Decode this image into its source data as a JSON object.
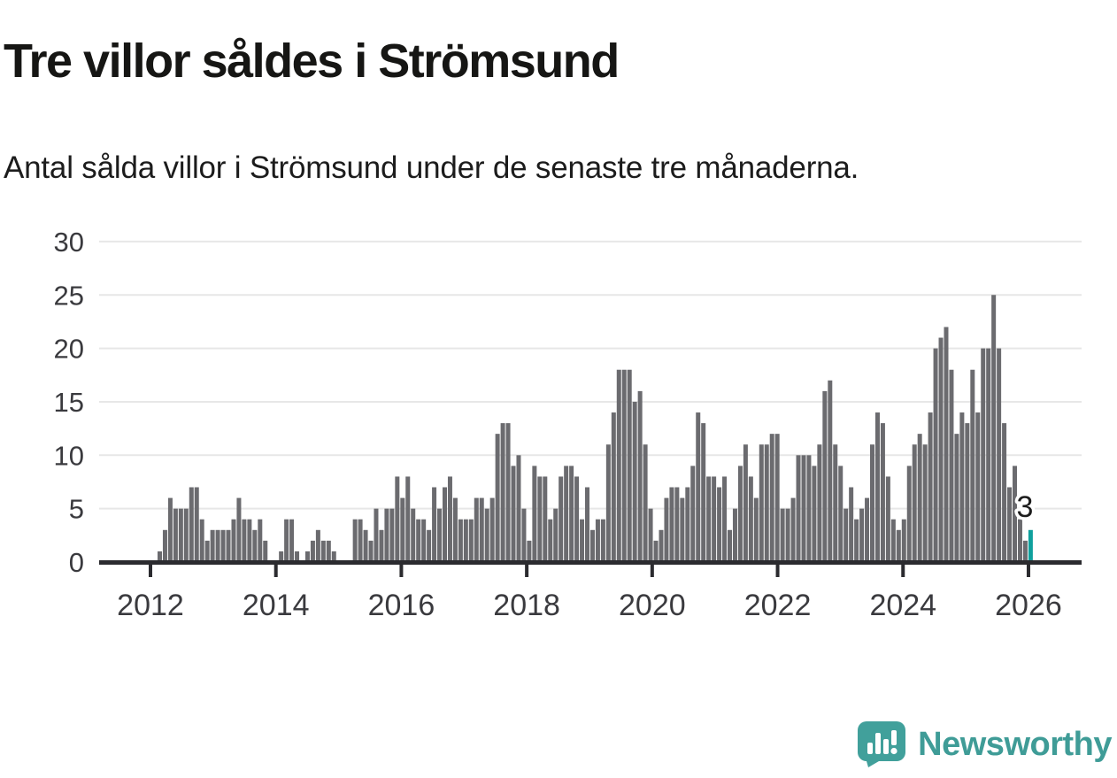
{
  "header": {
    "title": "Tre villor såldes i Strömsund",
    "subtitle": "Antal sålda villor i Strömsund under de senaste tre månaderna."
  },
  "chart_data": {
    "type": "bar",
    "title": "Tre villor såldes i Strömsund",
    "subtitle": "Antal sålda villor i Strömsund under de senaste tre månaderna.",
    "frequency": "monthly",
    "x_start_month": "2012-03",
    "x_end_month": "2025-12",
    "x_tick_labels": [
      "2012",
      "2014",
      "2016",
      "2018",
      "2020",
      "2022",
      "2024",
      "2026"
    ],
    "y_ticks": [
      0,
      5,
      10,
      15,
      20,
      25,
      30
    ],
    "ylim": [
      0,
      30
    ],
    "grid": "horizontal-lines",
    "legend": "none",
    "values": [
      1,
      3,
      6,
      5,
      5,
      5,
      7,
      7,
      4,
      2,
      3,
      3,
      3,
      3,
      4,
      6,
      4,
      4,
      3,
      4,
      2,
      0,
      0,
      1,
      4,
      4,
      1,
      0,
      1,
      2,
      3,
      2,
      2,
      1,
      0,
      0,
      0,
      4,
      4,
      3,
      2,
      5,
      3,
      5,
      5,
      8,
      6,
      8,
      5,
      4,
      4,
      3,
      7,
      5,
      7,
      8,
      6,
      4,
      4,
      4,
      6,
      6,
      5,
      6,
      12,
      13,
      13,
      9,
      10,
      5,
      2,
      9,
      8,
      8,
      4,
      5,
      8,
      9,
      9,
      8,
      4,
      7,
      3,
      4,
      4,
      11,
      14,
      18,
      18,
      18,
      15,
      16,
      11,
      5,
      2,
      3,
      6,
      7,
      7,
      6,
      7,
      9,
      14,
      13,
      8,
      8,
      7,
      8,
      3,
      5,
      9,
      11,
      8,
      6,
      11,
      11,
      12,
      12,
      5,
      5,
      6,
      10,
      10,
      10,
      9,
      11,
      16,
      17,
      11,
      9,
      5,
      7,
      4,
      5,
      6,
      11,
      14,
      13,
      8,
      4,
      3,
      4,
      9,
      11,
      12,
      11,
      14,
      20,
      21,
      22,
      18,
      12,
      14,
      13,
      18,
      14,
      20,
      20,
      25,
      20,
      13,
      7,
      9,
      4,
      2,
      3
    ],
    "highlight_last_bar": {
      "value": 3,
      "label": "3"
    }
  },
  "annotation": {
    "label": "3"
  },
  "logo": {
    "text": "Newsworthy",
    "icon": "newsworthy-chart-bubble-icon"
  },
  "colors": {
    "bar": "#6b6b6f",
    "highlight": "#10a09d",
    "grid": "#e7e7e7",
    "axis": "#2b2b2f",
    "tick_text": "#3a3a3e",
    "annotation_text": "#1c1c1c",
    "logo": "#41a09b",
    "logo_text": "#3f9c97",
    "background": "#ffffff"
  }
}
